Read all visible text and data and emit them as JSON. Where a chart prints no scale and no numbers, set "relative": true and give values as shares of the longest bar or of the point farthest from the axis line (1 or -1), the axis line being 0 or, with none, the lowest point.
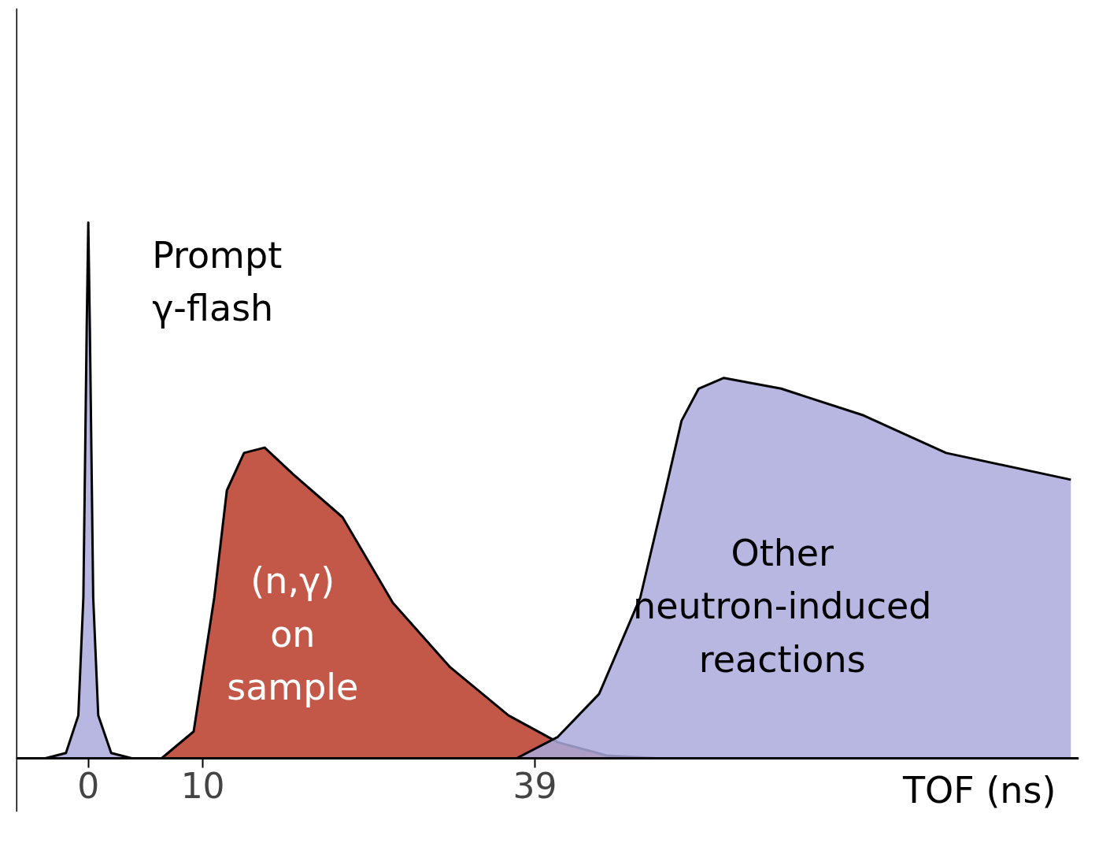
{
  "chart_data": {
    "type": "area",
    "relative": true,
    "xlabel": "TOF (ns)",
    "xlim": [
      -6.3,
      86.5
    ],
    "xticks": [
      0,
      10,
      39
    ],
    "tick_labels": "x",
    "grid": false,
    "series": [
      {
        "color": "#aaaadd",
        "x": [
          -3.75,
          -1.95,
          -0.87,
          -0.43,
          -0.14,
          0,
          0.14,
          0.43,
          0.87,
          2.0,
          3.8
        ],
        "values": [
          0,
          0.01,
          0.08,
          0.3,
          0.8,
          1,
          0.8,
          0.3,
          0.08,
          0.01,
          0
        ]
      },
      {
        "color": "#b83a28",
        "x": [
          6.4,
          9.2,
          11.0,
          12.1,
          13.6,
          15.4,
          17.9,
          22.2,
          26.6,
          31.6,
          36.7,
          41.0,
          45.3,
          49.7
        ],
        "values": [
          0,
          0.05,
          0.3,
          0.5,
          0.57,
          0.58,
          0.53,
          0.45,
          0.29,
          0.17,
          0.08,
          0.03,
          0.005,
          0
        ]
      },
      {
        "color": "#aaaadd",
        "x": [
          37.4,
          41.0,
          44.6,
          48.2,
          50.4,
          51.8,
          53.3,
          55.5,
          60.5,
          67.7,
          74.9,
          85.8
        ],
        "values": [
          0,
          0.04,
          0.12,
          0.3,
          0.5,
          0.63,
          0.69,
          0.71,
          0.69,
          0.64,
          0.57,
          0.52
        ]
      }
    ],
    "annotations": [
      "Prompt\nγ-flash",
      "(n,γ)\non\nsample",
      "Other\nneutron-induced\nreactions"
    ]
  }
}
